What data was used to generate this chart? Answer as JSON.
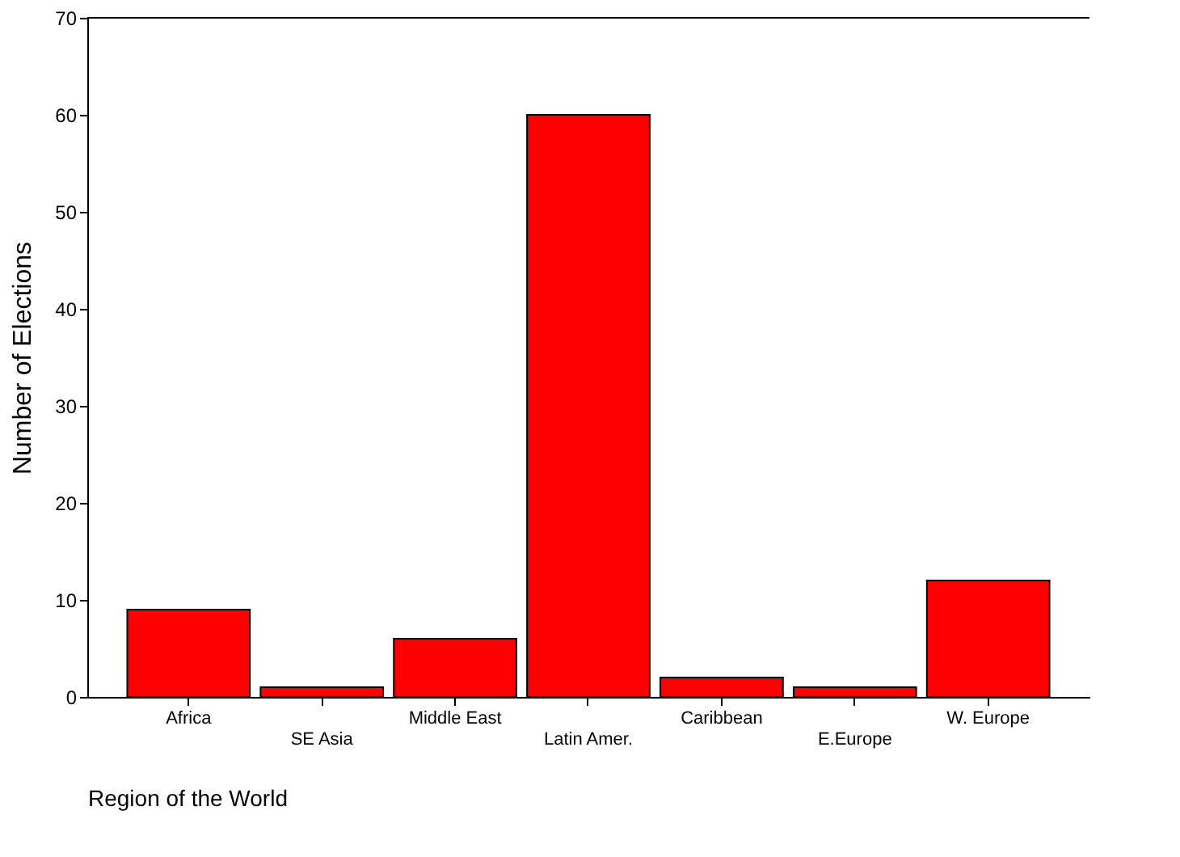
{
  "chart_data": {
    "type": "bar",
    "xlabel": "Region of the World",
    "ylabel": "Number of Elections",
    "categories": [
      "Africa",
      "SE Asia",
      "Middle East",
      "Latin Amer.",
      "Caribbean",
      "E.Europe",
      "W. Europe"
    ],
    "values": [
      9,
      1,
      6,
      60,
      2,
      1,
      12
    ],
    "color": "#ff0000",
    "ylim": [
      0,
      70
    ],
    "yticks": [
      0,
      10,
      20,
      30,
      40,
      50,
      60,
      70
    ],
    "grid": false
  }
}
